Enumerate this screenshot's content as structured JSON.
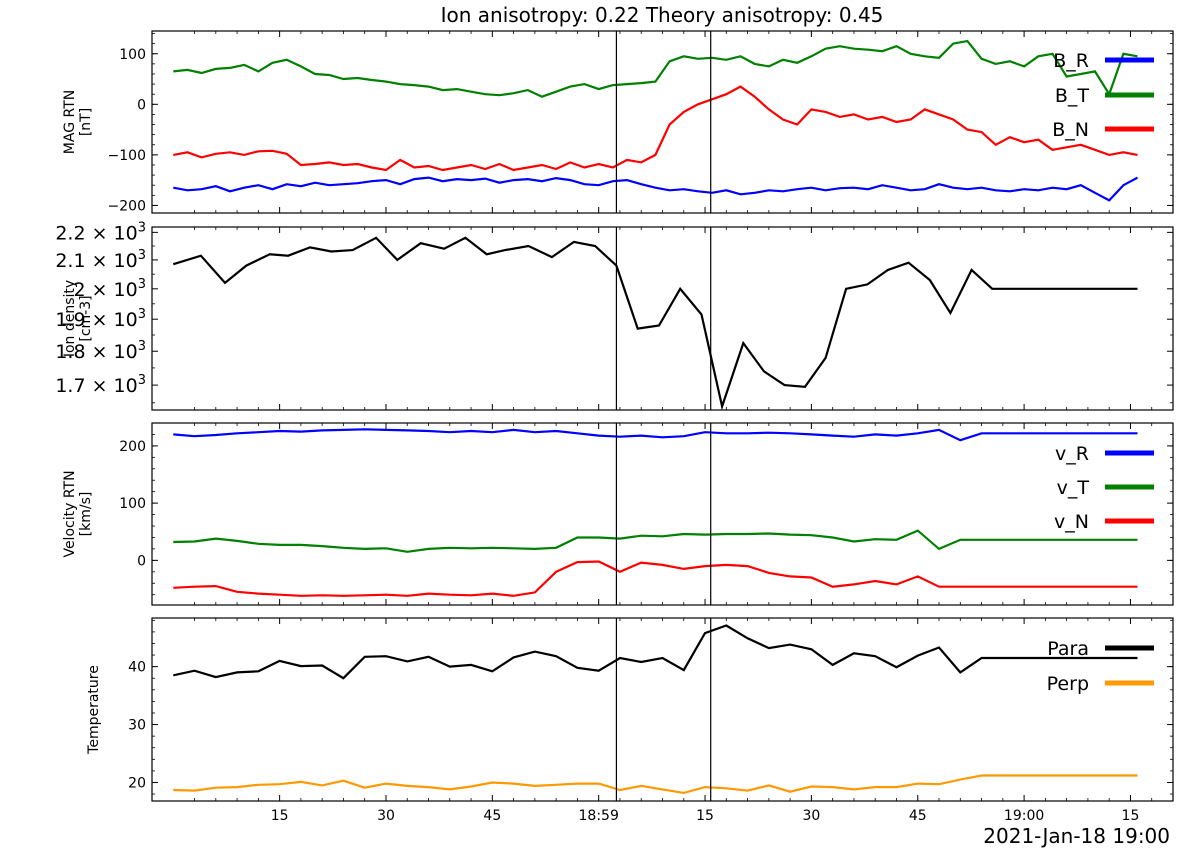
{
  "figure": {
    "title": "Ion anisotropy: 0.22 Theory anisotropy: 0.45",
    "time_label": "2021-Jan-18 19:00",
    "x_tick_labels": [
      "15",
      "30",
      "45",
      "18:59",
      "15",
      "30",
      "45",
      "19:00",
      "15"
    ],
    "vertical_markers_s": [
      62.5,
      75.8
    ]
  },
  "colors": {
    "R": "#0000ff",
    "T": "#008000",
    "N": "#ff0000",
    "para": "#000000",
    "perp": "#ff9900"
  },
  "chart_data": [
    {
      "type": "line",
      "id": "mag",
      "ylabel": [
        "MAG RTN",
        "[nT]"
      ],
      "ylim": [
        -215,
        145
      ],
      "yticks": [
        100,
        0,
        -100,
        -200
      ],
      "ytick_labels": [
        "100",
        "0",
        "−100",
        "−200"
      ],
      "grid": false,
      "legend": "top-right",
      "x_units": "seconds from first sample",
      "series": [
        {
          "name": "B_R",
          "color_key": "R",
          "x": [
            0,
            2,
            4,
            6,
            8,
            10,
            12,
            14,
            16,
            18,
            20,
            22,
            24,
            26,
            28,
            30,
            32,
            34,
            36,
            38,
            40,
            42,
            44,
            46,
            48,
            50,
            52,
            54,
            56,
            58,
            60,
            62,
            64,
            66,
            68,
            70,
            72,
            74,
            76,
            78,
            80,
            82,
            84,
            86,
            88,
            90,
            92,
            94,
            96,
            98,
            100,
            102,
            104,
            106,
            108,
            110,
            112,
            114,
            116,
            118,
            120,
            122,
            124,
            126,
            128,
            130,
            132,
            134,
            136
          ],
          "y": [
            -165,
            -170,
            -168,
            -162,
            -172,
            -165,
            -160,
            -168,
            -158,
            -162,
            -155,
            -160,
            -158,
            -156,
            -152,
            -150,
            -158,
            -148,
            -145,
            -152,
            -148,
            -150,
            -147,
            -155,
            -150,
            -148,
            -152,
            -146,
            -150,
            -158,
            -160,
            -152,
            -150,
            -158,
            -165,
            -170,
            -168,
            -172,
            -175,
            -170,
            -178,
            -175,
            -170,
            -172,
            -168,
            -165,
            -170,
            -166,
            -165,
            -168,
            -160,
            -165,
            -170,
            -168,
            -158,
            -165,
            -168,
            -165,
            -170,
            -172,
            -168,
            -170,
            -165,
            -168,
            -160,
            -175,
            -190,
            -160,
            -145
          ]
        },
        {
          "name": "B_T",
          "color_key": "T",
          "x": [
            0,
            2,
            4,
            6,
            8,
            10,
            12,
            14,
            16,
            18,
            20,
            22,
            24,
            26,
            28,
            30,
            32,
            34,
            36,
            38,
            40,
            42,
            44,
            46,
            48,
            50,
            52,
            54,
            56,
            58,
            60,
            62,
            64,
            66,
            68,
            70,
            72,
            74,
            76,
            78,
            80,
            82,
            84,
            86,
            88,
            90,
            92,
            94,
            96,
            98,
            100,
            102,
            104,
            106,
            108,
            110,
            112,
            114,
            116,
            118,
            120,
            122,
            124,
            126,
            128,
            130,
            132,
            134,
            136
          ],
          "y": [
            65,
            68,
            62,
            70,
            72,
            78,
            65,
            82,
            88,
            75,
            60,
            58,
            50,
            52,
            48,
            45,
            40,
            38,
            35,
            28,
            30,
            25,
            20,
            18,
            22,
            28,
            15,
            25,
            35,
            40,
            30,
            38,
            40,
            42,
            45,
            85,
            95,
            90,
            92,
            88,
            95,
            80,
            75,
            88,
            82,
            95,
            110,
            115,
            110,
            108,
            105,
            115,
            100,
            95,
            92,
            120,
            125,
            90,
            80,
            85,
            75,
            95,
            100,
            55,
            60,
            65,
            20,
            100,
            95
          ]
        },
        {
          "name": "B_N",
          "color_key": "N",
          "x": [
            0,
            2,
            4,
            6,
            8,
            10,
            12,
            14,
            16,
            18,
            20,
            22,
            24,
            26,
            28,
            30,
            32,
            34,
            36,
            38,
            40,
            42,
            44,
            46,
            48,
            50,
            52,
            54,
            56,
            58,
            60,
            62,
            64,
            66,
            68,
            70,
            72,
            74,
            76,
            78,
            80,
            82,
            84,
            86,
            88,
            90,
            92,
            94,
            96,
            98,
            100,
            102,
            104,
            106,
            108,
            110,
            112,
            114,
            116,
            118,
            120,
            122,
            124,
            126,
            128,
            130,
            132,
            134,
            136
          ],
          "y": [
            -100,
            -95,
            -105,
            -98,
            -95,
            -100,
            -93,
            -92,
            -98,
            -120,
            -118,
            -115,
            -120,
            -118,
            -125,
            -130,
            -110,
            -125,
            -122,
            -130,
            -125,
            -120,
            -128,
            -118,
            -130,
            -125,
            -120,
            -128,
            -115,
            -125,
            -118,
            -125,
            -110,
            -115,
            -100,
            -40,
            -15,
            0,
            10,
            20,
            35,
            15,
            -10,
            -30,
            -40,
            -10,
            -15,
            -25,
            -20,
            -30,
            -25,
            -35,
            -30,
            -10,
            -20,
            -30,
            -50,
            -55,
            -80,
            -65,
            -75,
            -70,
            -90,
            -85,
            -80,
            -90,
            -100,
            -95,
            -100
          ]
        }
      ]
    },
    {
      "type": "line",
      "id": "density",
      "ylabel": [
        "Ion density",
        "[cm-3]"
      ],
      "yscale": "log",
      "ylim": [
        1630,
        2220
      ],
      "yticks": [
        2200,
        2100,
        2000,
        1900,
        1800,
        1700
      ],
      "ytick_mantissas": [
        "2.2",
        "2.1",
        "2",
        "1.9",
        "1.8",
        "1.7"
      ],
      "ytick_exponent": "3",
      "grid": false,
      "x_units": "seconds from first sample",
      "series": [
        {
          "color_key": "para",
          "x": [
            0,
            3.9,
            7.3,
            10.3,
            13.6,
            16.2,
            19.3,
            22.3,
            25.3,
            28.6,
            31.6,
            34.9,
            38.2,
            41.2,
            44.2,
            46.8,
            50.1,
            53.4,
            56.5,
            59.5,
            62.5,
            65.5,
            68.5,
            71.5,
            74.5,
            77.4,
            80.4,
            83.3,
            86.2,
            89.1,
            92.0,
            94.9,
            97.9,
            100.8,
            103.7,
            106.7,
            109.6,
            112.6,
            115.5,
            118.4,
            121.4,
            124.3,
            127.3,
            130.2,
            133.1,
            136.0
          ],
          "y": [
            2085,
            2115,
            2020,
            2080,
            2120,
            2115,
            2145,
            2130,
            2135,
            2180,
            2100,
            2160,
            2140,
            2180,
            2120,
            2135,
            2150,
            2110,
            2165,
            2150,
            2080,
            1870,
            1880,
            2000,
            1915,
            1640,
            1825,
            1740,
            1700,
            1695,
            1780,
            2000,
            2015,
            2065,
            2090,
            2030,
            1920,
            2065,
            2000,
            2000,
            2000,
            2000,
            2000,
            2000,
            2000,
            2000
          ]
        }
      ]
    },
    {
      "type": "line",
      "id": "velocity",
      "ylabel": [
        "Velocity RTN",
        "[km/s]"
      ],
      "ylim": [
        -78,
        240
      ],
      "yticks": [
        200,
        100,
        0
      ],
      "ytick_labels": [
        "200",
        "100",
        "0"
      ],
      "grid": false,
      "legend": "top-right",
      "x_units": "seconds from first sample",
      "series": [
        {
          "name": "v_R",
          "color_key": "R",
          "x": [
            0,
            3,
            6,
            9,
            12,
            15,
            18,
            21,
            24,
            27,
            30,
            33,
            36,
            39,
            42,
            45,
            48,
            51,
            54,
            57,
            60,
            63,
            66,
            69,
            72,
            75,
            78,
            81,
            84,
            87,
            90,
            93,
            96,
            99,
            102,
            105,
            108,
            111,
            114,
            117,
            120,
            123,
            126,
            129,
            132,
            135,
            136
          ],
          "y": [
            220,
            217,
            219,
            222,
            224,
            226,
            225,
            227,
            228,
            229,
            228,
            227,
            226,
            224,
            226,
            224,
            228,
            224,
            226,
            222,
            218,
            216,
            218,
            215,
            217,
            224,
            222,
            222,
            223,
            222,
            220,
            218,
            216,
            220,
            218,
            222,
            228,
            210,
            222,
            222,
            222,
            222,
            222,
            222,
            222,
            222,
            222
          ]
        },
        {
          "name": "v_T",
          "color_key": "T",
          "x": [
            0,
            3,
            6,
            9,
            12,
            15,
            18,
            21,
            24,
            27,
            30,
            33,
            36,
            39,
            42,
            45,
            48,
            51,
            54,
            57,
            60,
            63,
            66,
            69,
            72,
            75,
            78,
            81,
            84,
            87,
            90,
            93,
            96,
            99,
            102,
            105,
            108,
            111,
            114,
            117,
            120,
            123,
            126,
            129,
            132,
            135,
            136
          ],
          "y": [
            32,
            33,
            38,
            34,
            29,
            27,
            27,
            25,
            22,
            20,
            21,
            15,
            20,
            22,
            21,
            22,
            21,
            20,
            22,
            40,
            40,
            38,
            43,
            42,
            46,
            45,
            46,
            46,
            47,
            45,
            44,
            40,
            33,
            37,
            36,
            52,
            20,
            36,
            36,
            36,
            36,
            36,
            36,
            36,
            36,
            36,
            36
          ]
        },
        {
          "name": "v_N",
          "color_key": "N",
          "x": [
            0,
            3,
            6,
            9,
            12,
            15,
            18,
            21,
            24,
            27,
            30,
            33,
            36,
            39,
            42,
            45,
            48,
            51,
            54,
            57,
            60,
            63,
            66,
            69,
            72,
            75,
            78,
            81,
            84,
            87,
            90,
            93,
            96,
            99,
            102,
            105,
            108,
            111,
            114,
            117,
            120,
            123,
            126,
            129,
            132,
            135,
            136
          ],
          "y": [
            -48,
            -46,
            -45,
            -55,
            -58,
            -60,
            -62,
            -61,
            -62,
            -61,
            -60,
            -62,
            -58,
            -60,
            -61,
            -58,
            -62,
            -56,
            -20,
            -3,
            -2,
            -20,
            -4,
            -8,
            -15,
            -10,
            -8,
            -10,
            -22,
            -28,
            -30,
            -46,
            -42,
            -36,
            -42,
            -28,
            -46,
            -46,
            -46,
            -46,
            -46,
            -46,
            -46,
            -46,
            -46,
            -46,
            -46
          ]
        }
      ]
    },
    {
      "type": "line",
      "id": "temperature",
      "ylabel": [
        "Temperature"
      ],
      "ylim": [
        16.8,
        48.4
      ],
      "yticks": [
        40,
        30,
        20
      ],
      "ytick_labels": [
        "40",
        "30",
        "20"
      ],
      "grid": false,
      "legend": "top-right",
      "x_units": "seconds from first sample",
      "series": [
        {
          "name": "Para",
          "color_key": "para",
          "x": [
            0,
            3,
            6,
            9,
            12,
            15,
            18,
            21,
            24,
            27,
            30,
            33,
            36,
            39,
            42,
            45,
            48,
            51,
            54,
            57,
            60,
            63,
            66,
            69,
            72,
            75,
            78,
            81,
            84,
            87,
            90,
            93,
            96,
            99,
            102,
            105,
            108,
            111,
            114,
            117,
            120,
            123,
            126,
            129,
            132,
            135,
            136
          ],
          "y": [
            38.5,
            39.3,
            38.2,
            39.0,
            39.2,
            41.0,
            40.1,
            40.2,
            38.0,
            41.7,
            41.8,
            40.9,
            41.7,
            40.0,
            40.3,
            39.2,
            41.6,
            42.6,
            41.8,
            39.8,
            39.3,
            41.5,
            40.8,
            41.5,
            39.4,
            45.8,
            47.1,
            44.9,
            43.2,
            43.8,
            43.0,
            40.3,
            42.3,
            41.8,
            39.9,
            41.9,
            43.3,
            39.0,
            41.5,
            41.5,
            41.5,
            41.5,
            41.5,
            41.5,
            41.5,
            41.5,
            41.5
          ]
        },
        {
          "name": "Perp",
          "color_key": "perp",
          "x": [
            0,
            3,
            6,
            9,
            12,
            15,
            18,
            21,
            24,
            27,
            30,
            33,
            36,
            39,
            42,
            45,
            48,
            51,
            54,
            57,
            60,
            63,
            66,
            69,
            72,
            75,
            78,
            81,
            84,
            87,
            90,
            93,
            96,
            99,
            102,
            105,
            108,
            111,
            114,
            117,
            120,
            123,
            126,
            129,
            132,
            135,
            136
          ],
          "y": [
            18.7,
            18.6,
            19.1,
            19.2,
            19.6,
            19.7,
            20.1,
            19.5,
            20.3,
            19.1,
            19.8,
            19.4,
            19.2,
            18.8,
            19.3,
            20.0,
            19.8,
            19.4,
            19.6,
            19.8,
            19.8,
            18.7,
            19.4,
            18.8,
            18.2,
            19.2,
            19.0,
            18.6,
            19.5,
            18.4,
            19.3,
            19.2,
            18.8,
            19.2,
            19.2,
            19.8,
            19.7,
            20.5,
            21.2,
            21.2,
            21.2,
            21.2,
            21.2,
            21.2,
            21.2,
            21.2,
            21.2
          ]
        }
      ]
    }
  ]
}
